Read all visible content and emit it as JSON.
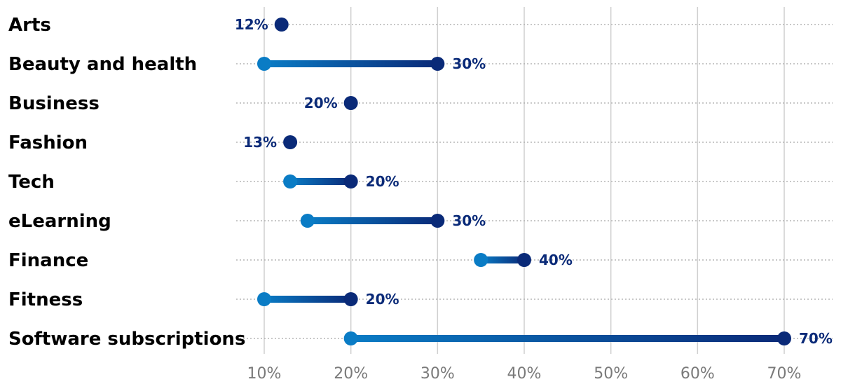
{
  "chart_data": {
    "type": "dumbbell",
    "title": "",
    "xlabel": "",
    "ylabel": "",
    "xlim": [
      10,
      70
    ],
    "x_ticks": [
      "10%",
      "20%",
      "30%",
      "40%",
      "50%",
      "60%",
      "70%"
    ],
    "x_tick_values": [
      10,
      20,
      30,
      40,
      50,
      60,
      70
    ],
    "grid": "vertical",
    "categories": [
      "Arts",
      "Beauty and health",
      "Business",
      "Fashion",
      "Tech",
      "eLearning",
      "Finance",
      "Fitness",
      "Software subscriptions"
    ],
    "low": [
      12,
      10,
      20,
      13,
      13,
      15,
      35,
      10,
      20
    ],
    "high": [
      12,
      30,
      20,
      13,
      20,
      30,
      40,
      20,
      70
    ],
    "labels": [
      "12%",
      "30%",
      "20%",
      "13%",
      "20%",
      "30%",
      "40%",
      "20%",
      "70%"
    ],
    "colors": {
      "low": "#0a7cc5",
      "high": "#0a2a78",
      "label": "#0a2a78"
    }
  }
}
